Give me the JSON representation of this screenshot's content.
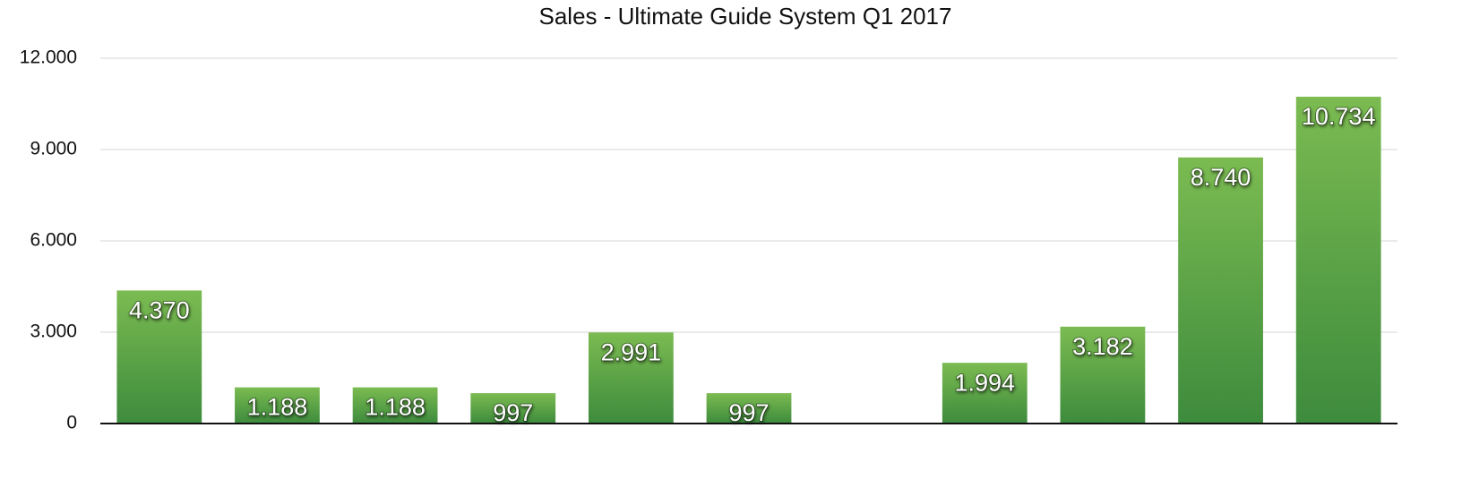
{
  "chart_data": {
    "type": "bar",
    "title": "Sales - Ultimate Guide System Q1 2017",
    "values": [
      4370,
      1188,
      1188,
      997,
      2991,
      997,
      null,
      1994,
      3182,
      8740,
      10734
    ],
    "value_labels": [
      "4.370",
      "1.188",
      "1.188",
      "997",
      "2.991",
      "997",
      null,
      "1.994",
      "3.182",
      "8.740",
      "10.734"
    ],
    "color": "#5da145",
    "ylim": [
      0,
      12000
    ],
    "yticks": [
      0,
      {
        "value": 3000,
        "label": "3.000"
      },
      {
        "value": 6000,
        "label": "6.000"
      },
      {
        "value": 9000,
        "label": "9.000"
      },
      {
        "value": 12000,
        "label": "12.000"
      }
    ],
    "grid": true
  }
}
